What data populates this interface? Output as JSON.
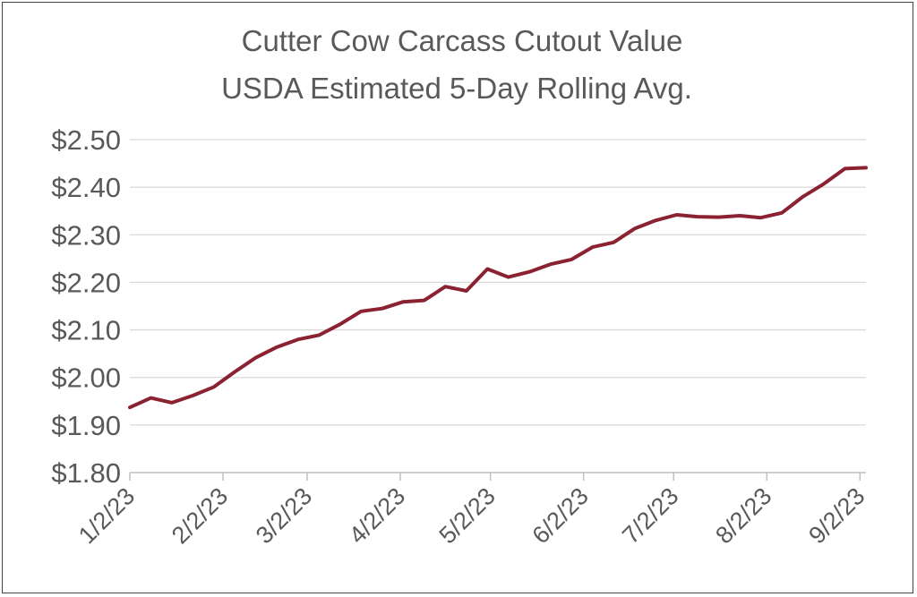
{
  "chart_data": {
    "type": "line",
    "title": "Cutter Cow Carcass Cutout Value",
    "subtitle": "USDA  Estimated 5-Day Rolling Avg.",
    "xlabel": "",
    "ylabel": "",
    "x_tick_labels": [
      "1/2/23",
      "2/2/23",
      "3/2/23",
      "4/2/23",
      "5/2/23",
      "6/2/23",
      "7/2/23",
      "8/2/23",
      "9/2/23"
    ],
    "y_tick_labels": [
      "$1.80",
      "$1.90",
      "$2.00",
      "$2.10",
      "$2.20",
      "$2.30",
      "$2.40",
      "$2.50"
    ],
    "ylim": [
      1.8,
      2.5
    ],
    "xlim": [
      "2023-01-02",
      "2023-09-04"
    ],
    "grid": true,
    "legend": "none",
    "series": [
      {
        "color": "#8B2232",
        "x": [
          "2023-01-02",
          "2023-01-09",
          "2023-01-16",
          "2023-01-23",
          "2023-01-30",
          "2023-02-06",
          "2023-02-13",
          "2023-02-20",
          "2023-02-27",
          "2023-03-06",
          "2023-03-13",
          "2023-03-20",
          "2023-03-27",
          "2023-04-03",
          "2023-04-10",
          "2023-04-17",
          "2023-04-24",
          "2023-05-01",
          "2023-05-08",
          "2023-05-15",
          "2023-05-22",
          "2023-05-29",
          "2023-06-05",
          "2023-06-12",
          "2023-06-19",
          "2023-06-26",
          "2023-07-03",
          "2023-07-10",
          "2023-07-17",
          "2023-07-24",
          "2023-07-31",
          "2023-08-07",
          "2023-08-14",
          "2023-08-21",
          "2023-08-28",
          "2023-09-04"
        ],
        "values": [
          1.937,
          1.957,
          1.947,
          1.962,
          1.98,
          2.012,
          2.042,
          2.064,
          2.08,
          2.089,
          2.112,
          2.139,
          2.145,
          2.159,
          2.162,
          2.191,
          2.182,
          2.228,
          2.211,
          2.222,
          2.238,
          2.248,
          2.274,
          2.284,
          2.313,
          2.33,
          2.342,
          2.338,
          2.337,
          2.34,
          2.336,
          2.346,
          2.38,
          2.407,
          2.439,
          2.441
        ]
      }
    ]
  }
}
